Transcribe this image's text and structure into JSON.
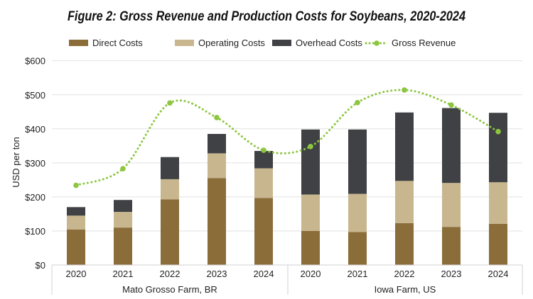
{
  "chart_data": {
    "type": "bar",
    "stacked": true,
    "title": "Figure 2:  Gross Revenue and Production Costs for Soybeans, 2020-2024",
    "ylabel": "USD per ton",
    "xlabel": "",
    "ylim": [
      0,
      600
    ],
    "yticks": [
      "$0",
      "$100",
      "$200",
      "$300",
      "$400",
      "$500",
      "$600"
    ],
    "ytick_values": [
      0,
      100,
      200,
      300,
      400,
      500,
      600
    ],
    "grid": true,
    "legend_position": "top",
    "groups": [
      {
        "label": "Mato Grosso Farm, BR",
        "categories": [
          "2020",
          "2021",
          "2022",
          "2023",
          "2024"
        ]
      },
      {
        "label": "Iowa Farm, US",
        "categories": [
          "2020",
          "2021",
          "2022",
          "2023",
          "2024"
        ]
      }
    ],
    "series": [
      {
        "name": "Direct Costs",
        "kind": "bar",
        "color": "#8b6d3a",
        "values": [
          104,
          110,
          193,
          255,
          197,
          100,
          97,
          123,
          112,
          121
        ]
      },
      {
        "name": "Operating Costs",
        "kind": "bar",
        "color": "#c8b68e",
        "values": [
          41,
          46,
          59,
          73,
          87,
          107,
          112,
          124,
          129,
          122
        ]
      },
      {
        "name": "Overhead Costs",
        "kind": "bar",
        "color": "#3f4144",
        "values": [
          25,
          35,
          65,
          57,
          51,
          191,
          189,
          201,
          220,
          204
        ]
      },
      {
        "name": "Gross Revenue",
        "kind": "line",
        "style": "dotted-smooth",
        "color": "#8cc63f",
        "values": [
          234,
          283,
          476,
          433,
          337,
          348,
          477,
          514,
          470,
          392
        ]
      }
    ]
  }
}
